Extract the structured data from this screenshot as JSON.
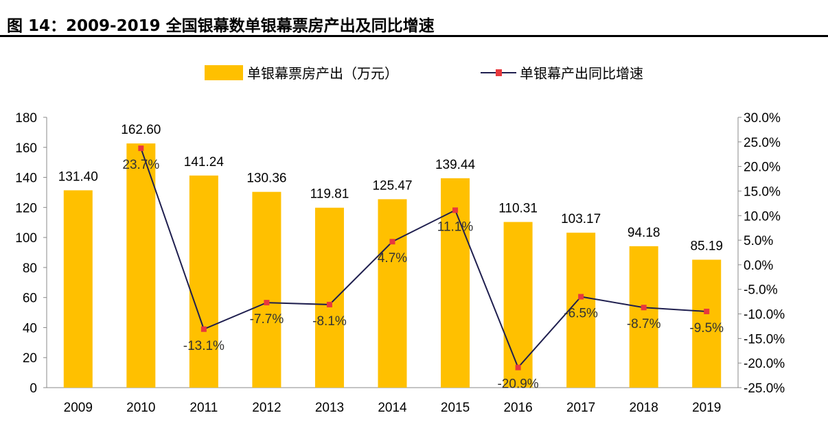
{
  "title": "图 14：2009-2019 全国银幕数单银幕票房产出及同比增速",
  "chart_data": {
    "type": "bar+line",
    "categories": [
      "2009",
      "2010",
      "2011",
      "2012",
      "2013",
      "2014",
      "2015",
      "2016",
      "2017",
      "2018",
      "2019"
    ],
    "series": [
      {
        "name": "单银幕票房产出（万元）",
        "type": "bar",
        "axis": "left",
        "color": "#FFC000",
        "values": [
          131.4,
          162.6,
          141.24,
          130.36,
          119.81,
          125.47,
          139.44,
          110.31,
          103.17,
          94.18,
          85.19
        ],
        "labels": [
          "131.40",
          "162.60",
          "141.24",
          "130.36",
          "119.81",
          "125.47",
          "139.44",
          "110.31",
          "103.17",
          "94.18",
          "85.19"
        ]
      },
      {
        "name": "单银幕产出同比增速",
        "type": "line",
        "axis": "right",
        "color": "#1F1F4F",
        "marker_color": "#E8383D",
        "values": [
          null,
          23.7,
          -13.1,
          -7.7,
          -8.1,
          4.7,
          11.1,
          -20.9,
          -6.5,
          -8.7,
          -9.5
        ],
        "labels": [
          "",
          "23.7%",
          "-13.1%",
          "-7.7%",
          "-8.1%",
          "4.7%",
          "11.1%",
          "-20.9%",
          "-6.5%",
          "-8.7%",
          "-9.5%"
        ]
      }
    ],
    "y_left": {
      "range": [
        0,
        180
      ],
      "ticks": [
        "0",
        "20",
        "40",
        "60",
        "80",
        "100",
        "120",
        "140",
        "160",
        "180"
      ]
    },
    "y_right": {
      "range": [
        -25,
        30
      ],
      "ticks": [
        "-25.0%",
        "-20.0%",
        "-15.0%",
        "-10.0%",
        "-5.0%",
        "0.0%",
        "5.0%",
        "10.0%",
        "15.0%",
        "20.0%",
        "25.0%",
        "30.0%"
      ]
    },
    "legend": "top",
    "grid": false
  }
}
